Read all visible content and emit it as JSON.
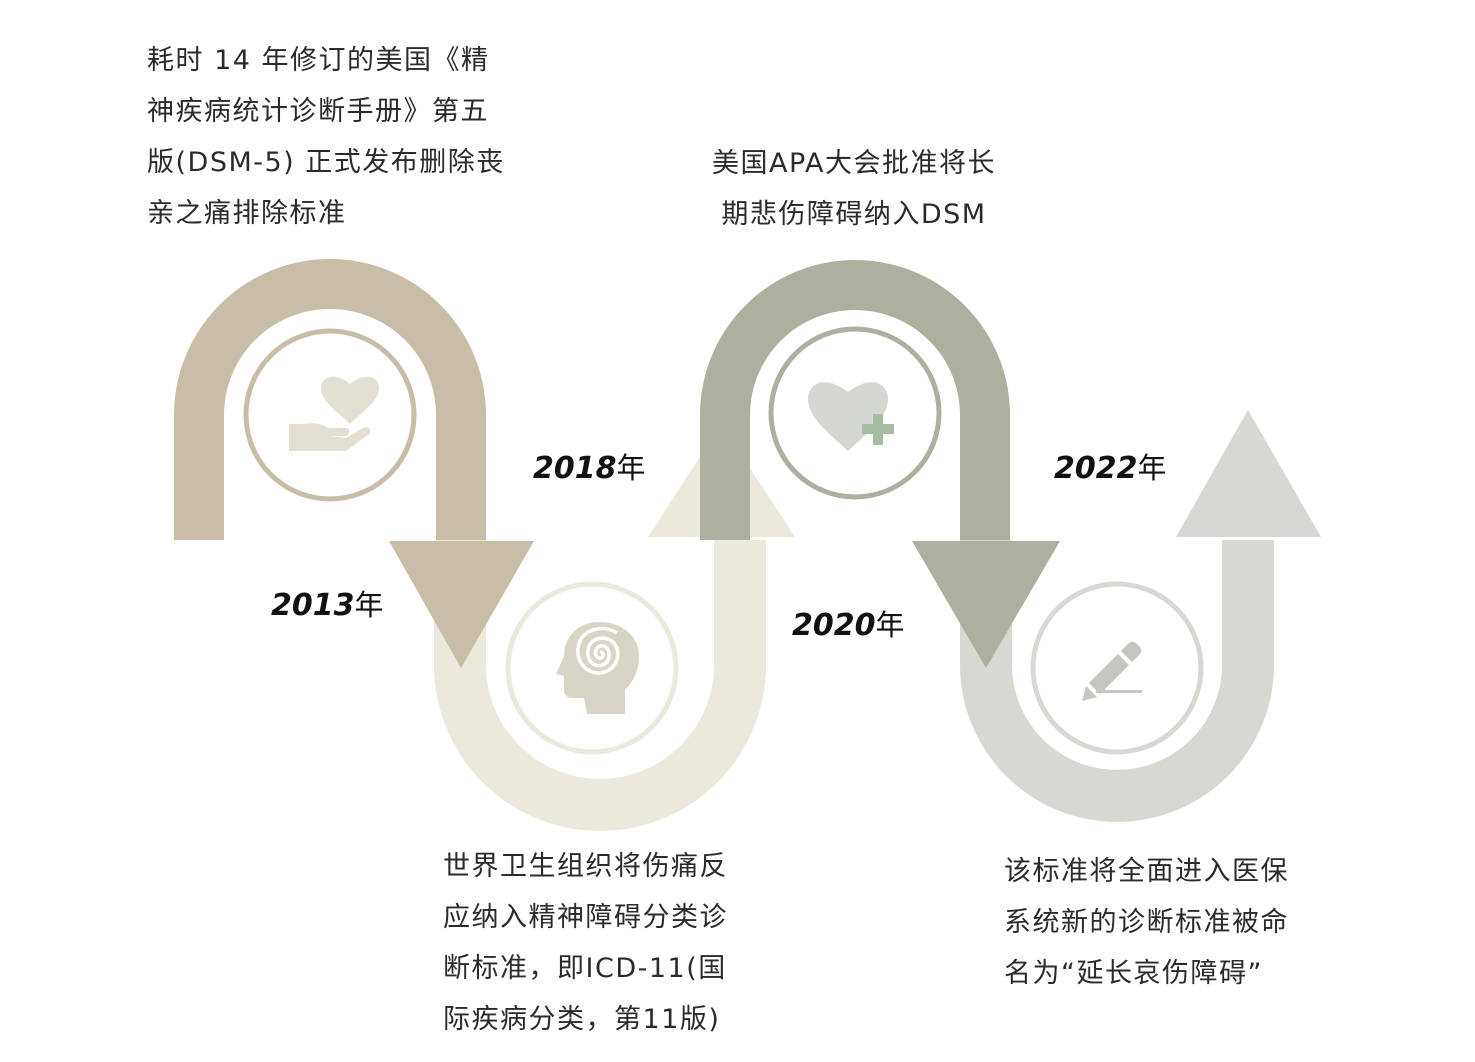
{
  "colors": {
    "stage1": "#c8bea8",
    "stage2": "#ebe8dc",
    "stage3": "#aeaf9f",
    "stage4": "#d6d9d1",
    "icon1": "#e4dfd3",
    "icon2": "#d9d5c6",
    "icon3": "#d5d8d0",
    "icon3_plus": "#a7bca3",
    "icon4": "#c4c7bf",
    "ring1": "#c8bea8",
    "ring2": "#ebe8dc",
    "ring3": "#aeaf9f",
    "ring4": "#d6d9d1"
  },
  "events": [
    {
      "year": "2013",
      "year_unit": "年",
      "icon": "heart-in-hand-icon",
      "lines": [
        "耗时 14 年修订的美国《精",
        "神疾病统计诊断手册》第五",
        "版(DSM-5) 正式发布删除丧",
        "亲之痛排除标准"
      ]
    },
    {
      "year": "2018",
      "year_unit": "年",
      "icon": "head-spiral-icon",
      "lines": [
        "世界卫生组织将伤痛反",
        "应纳入精神障碍分类诊",
        "断标准，即ICD-11(国",
        "际疾病分类，第11版)"
      ]
    },
    {
      "year": "2020",
      "year_unit": "年",
      "icon": "heart-plus-icon",
      "lines": [
        "美国APA大会批准将长",
        "期悲伤障碍纳入DSM"
      ]
    },
    {
      "year": "2022",
      "year_unit": "年",
      "icon": "pencil-icon",
      "lines": [
        "该标准将全面进入医保",
        "系统新的诊断标准被命",
        "名为“延长哀伤障碍”"
      ]
    }
  ]
}
